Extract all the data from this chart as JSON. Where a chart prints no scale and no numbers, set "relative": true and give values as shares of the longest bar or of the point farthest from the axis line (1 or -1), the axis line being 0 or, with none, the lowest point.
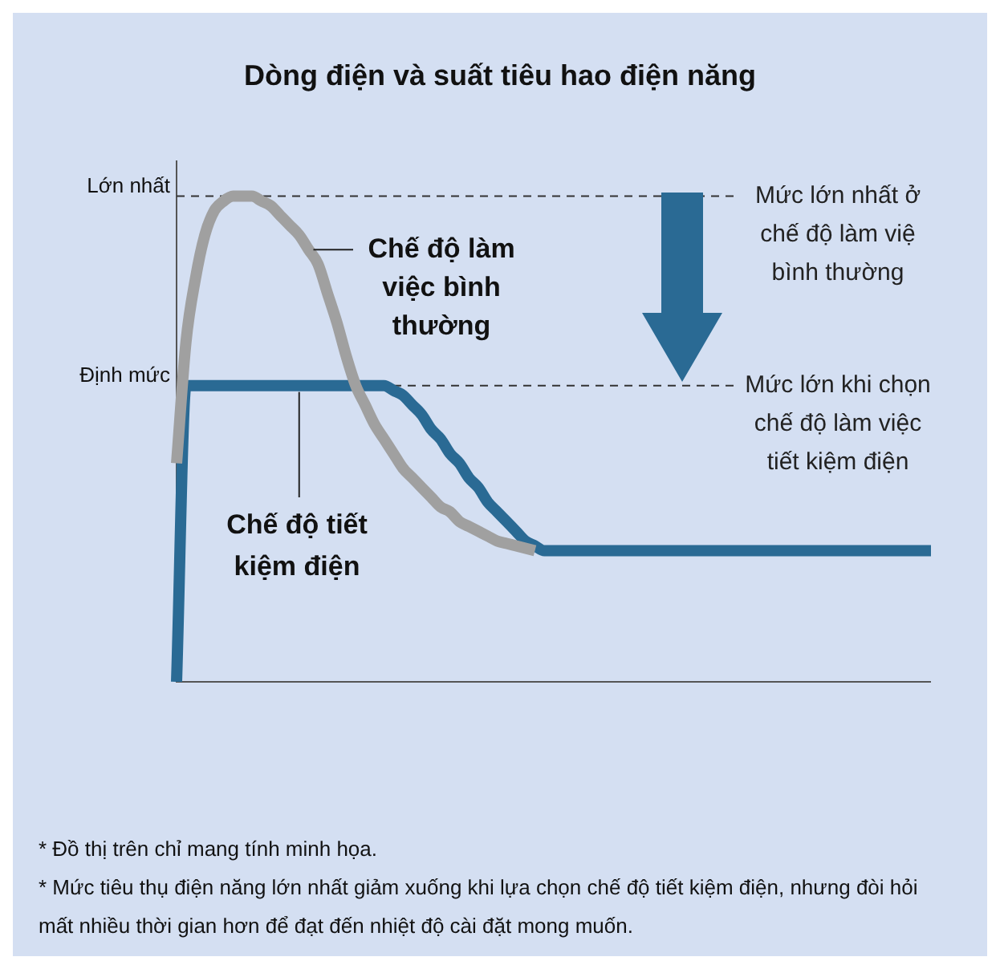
{
  "chart_data": {
    "type": "line",
    "title": "Dòng điện và suất tiêu hao điện năng",
    "relative": true,
    "legend": false,
    "marker": "none",
    "line_style": "solid",
    "categories": [
      null,
      null,
      null,
      null,
      null,
      null,
      null,
      null,
      null,
      null,
      null,
      null,
      null,
      null,
      null,
      null,
      null,
      null,
      null,
      null,
      null,
      null,
      null,
      null,
      null,
      null,
      null,
      null,
      null,
      null,
      null,
      null,
      null,
      null,
      null,
      null,
      null,
      null,
      null,
      null,
      null,
      null,
      null,
      null,
      null,
      null,
      null,
      null,
      null,
      null,
      null,
      null,
      null,
      null,
      null,
      null,
      null,
      null,
      null,
      null,
      null,
      null,
      null,
      null,
      null,
      null,
      null,
      null,
      null,
      null,
      null,
      null,
      null,
      null,
      null,
      null,
      null,
      null,
      null,
      null,
      null
    ],
    "series": [
      {
        "name": "Chế độ làm việc bình thường",
        "color": "#a0a0a0",
        "values": [
          0.45,
          0.7,
          0.83,
          0.92,
          0.97,
          0.99,
          1.0,
          1.0,
          1.0,
          0.99,
          0.98,
          0.96,
          0.94,
          0.92,
          0.89,
          0.86,
          0.8,
          0.74,
          0.67,
          0.61,
          0.57,
          0.53,
          0.5,
          0.47,
          0.44,
          0.42,
          0.4,
          0.38,
          0.36,
          0.35,
          0.33,
          0.32,
          0.31,
          0.3,
          0.29,
          0.285,
          0.28,
          0.275,
          0.27,
          null,
          null,
          null,
          null,
          null,
          null,
          null,
          null,
          null,
          null,
          null,
          null,
          null,
          null,
          null,
          null,
          null,
          null,
          null,
          null,
          null,
          null,
          null,
          null,
          null,
          null,
          null,
          null,
          null,
          null,
          null,
          null,
          null,
          null,
          null,
          null,
          null,
          null,
          null,
          null,
          null,
          null
        ]
      },
      {
        "name": "Chế độ tiết kiệm điện",
        "color": "#2a6a94",
        "values": [
          0,
          0.61,
          0.61,
          0.61,
          0.61,
          0.61,
          0.61,
          0.61,
          0.61,
          0.61,
          0.61,
          0.61,
          0.61,
          0.61,
          0.61,
          0.61,
          0.61,
          0.61,
          0.61,
          0.61,
          0.61,
          0.61,
          0.61,
          0.6,
          0.59,
          0.57,
          0.55,
          0.52,
          0.5,
          0.47,
          0.45,
          0.42,
          0.4,
          0.37,
          0.35,
          0.33,
          0.31,
          0.29,
          0.28,
          0.27,
          0.27,
          0.27,
          0.27,
          0.27,
          0.27,
          0.27,
          0.27,
          0.27,
          0.27,
          0.27,
          0.27,
          0.27,
          0.27,
          0.27,
          0.27,
          0.27,
          0.27,
          0.27,
          0.27,
          0.27,
          0.27,
          0.27,
          0.27,
          0.27,
          0.27,
          0.27,
          0.27,
          0.27,
          0.27,
          0.27,
          0.27,
          0.27,
          0.27,
          0.27,
          0.27,
          0.27,
          0.27,
          0.27,
          0.27,
          0.27,
          0.27
        ]
      }
    ],
    "ref_lines": [
      {
        "axis": "y",
        "value": 1,
        "label": "Lớn nhất",
        "line_style": "dashed"
      },
      {
        "axis": "y",
        "value": 0.61,
        "label": "Định mức",
        "line_style": "dashed"
      }
    ],
    "annotations": [
      "Mức lớn nhất ở chế độ làm việ bình thường",
      "Mức lớn khi chọn chế độ làm việc tiết kiệm điện",
      "* Đồ thị trên chỉ mang tính minh họa.",
      "* Mức tiêu thụ điện năng lớn nhất giảm xuống khi lựa chọn chế độ tiết kiệm điện, nhưng đòi hỏi mất nhiều thời gian hơn để đạt đến nhiệt độ cài đặt mong muốn."
    ]
  }
}
